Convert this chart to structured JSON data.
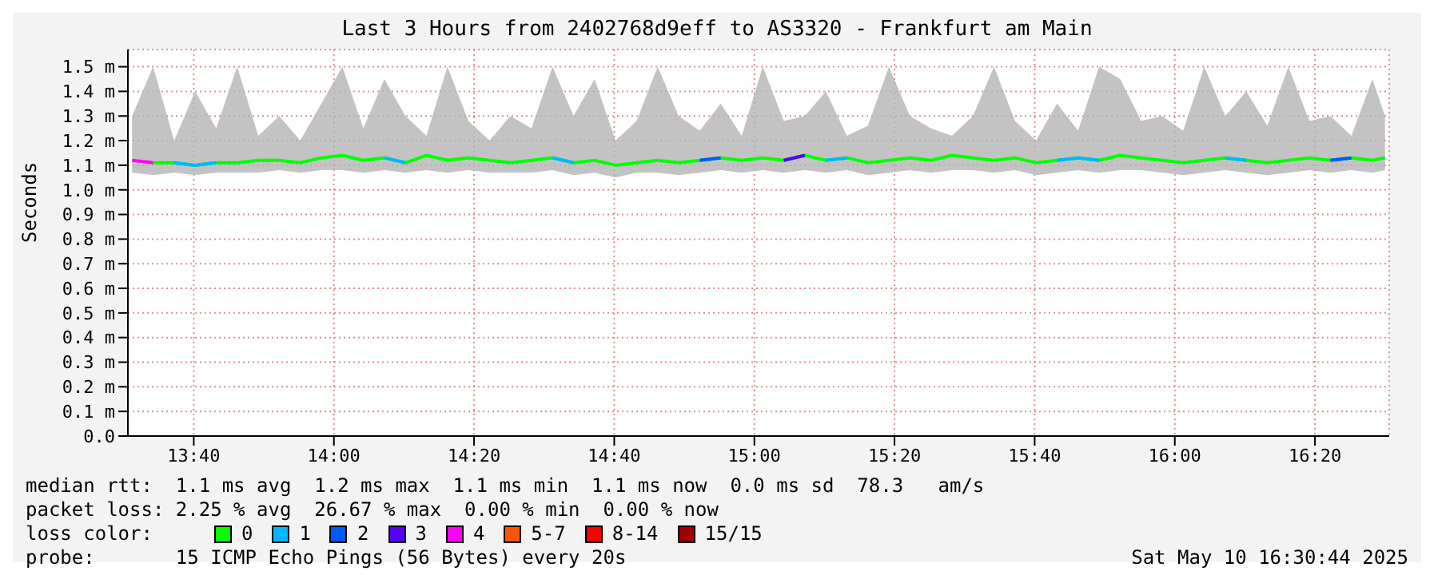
{
  "chart_data": {
    "type": "line",
    "title": "Last 3 Hours from 2402768d9eff to AS3320 - Frankfurt am Main",
    "ylabel": "Seconds",
    "x": [
      13.52,
      13.57,
      13.62,
      13.67,
      13.72,
      13.77,
      13.82,
      13.87,
      13.92,
      13.97,
      14.02,
      14.07,
      14.12,
      14.17,
      14.22,
      14.27,
      14.32,
      14.37,
      14.42,
      14.47,
      14.52,
      14.57,
      14.62,
      14.67,
      14.72,
      14.77,
      14.82,
      14.87,
      14.92,
      14.97,
      15.02,
      15.07,
      15.12,
      15.17,
      15.22,
      15.27,
      15.32,
      15.37,
      15.42,
      15.47,
      15.52,
      15.57,
      15.62,
      15.67,
      15.72,
      15.77,
      15.82,
      15.87,
      15.92,
      15.97,
      16.02,
      16.07,
      16.12,
      16.17,
      16.22,
      16.27,
      16.32,
      16.37,
      16.42,
      16.47,
      16.5
    ],
    "series": [
      {
        "name": "0",
        "color": "#00ff00",
        "values": [
          null,
          1.11,
          1.11,
          1.1,
          1.11,
          1.11,
          1.12,
          1.12,
          1.11,
          1.13,
          1.14,
          1.12,
          1.13,
          1.11,
          1.14,
          1.12,
          1.13,
          1.12,
          1.11,
          1.12,
          1.13,
          1.11,
          1.12,
          1.1,
          1.11,
          1.12,
          1.11,
          1.12,
          1.13,
          1.12,
          1.13,
          1.12,
          1.14,
          1.12,
          1.13,
          1.11,
          1.12,
          1.13,
          1.12,
          1.14,
          1.13,
          1.12,
          1.13,
          1.11,
          1.12,
          1.13,
          1.12,
          1.14,
          1.13,
          1.12,
          1.11,
          1.12,
          1.13,
          1.12,
          1.11,
          1.12,
          1.13,
          1.12,
          1.13,
          1.12,
          1.13
        ],
        "lower": [
          1.07,
          1.06,
          1.07,
          1.06,
          1.07,
          1.07,
          1.07,
          1.08,
          1.07,
          1.08,
          1.08,
          1.07,
          1.08,
          1.07,
          1.08,
          1.07,
          1.08,
          1.07,
          1.07,
          1.07,
          1.08,
          1.06,
          1.07,
          1.05,
          1.07,
          1.07,
          1.06,
          1.07,
          1.08,
          1.07,
          1.08,
          1.07,
          1.08,
          1.07,
          1.08,
          1.06,
          1.07,
          1.08,
          1.07,
          1.08,
          1.08,
          1.07,
          1.08,
          1.06,
          1.07,
          1.08,
          1.07,
          1.08,
          1.08,
          1.07,
          1.06,
          1.07,
          1.08,
          1.07,
          1.06,
          1.07,
          1.08,
          1.07,
          1.08,
          1.07,
          1.08
        ],
        "upper": [
          1.3,
          1.5,
          1.2,
          1.4,
          1.25,
          1.5,
          1.22,
          1.3,
          1.2,
          1.35,
          1.5,
          1.25,
          1.45,
          1.3,
          1.22,
          1.5,
          1.28,
          1.2,
          1.3,
          1.25,
          1.5,
          1.3,
          1.45,
          1.2,
          1.28,
          1.5,
          1.3,
          1.24,
          1.35,
          1.22,
          1.5,
          1.28,
          1.3,
          1.4,
          1.22,
          1.26,
          1.5,
          1.3,
          1.25,
          1.22,
          1.3,
          1.5,
          1.28,
          1.2,
          1.35,
          1.24,
          1.5,
          1.45,
          1.28,
          1.3,
          1.24,
          1.5,
          1.3,
          1.4,
          1.26,
          1.5,
          1.28,
          1.3,
          1.22,
          1.45,
          1.3
        ]
      },
      {
        "name": "1",
        "color": "#00b8ff",
        "values": [
          null,
          null,
          1.11,
          1.1,
          1.11,
          null,
          null,
          null,
          null,
          null,
          null,
          null,
          1.13,
          1.11,
          null,
          null,
          null,
          null,
          null,
          null,
          1.13,
          1.11,
          null,
          null,
          null,
          null,
          null,
          null,
          null,
          null,
          null,
          null,
          null,
          1.12,
          1.13,
          null,
          null,
          null,
          null,
          null,
          null,
          null,
          null,
          null,
          1.12,
          1.13,
          1.12,
          null,
          null,
          null,
          null,
          null,
          1.13,
          1.12,
          null,
          null,
          null,
          null,
          null,
          null,
          null
        ]
      },
      {
        "name": "2",
        "color": "#0059ff",
        "values": [
          null,
          null,
          null,
          null,
          null,
          null,
          null,
          null,
          null,
          null,
          null,
          null,
          null,
          null,
          null,
          null,
          null,
          null,
          null,
          null,
          null,
          null,
          null,
          null,
          null,
          null,
          null,
          1.12,
          1.13,
          null,
          null,
          null,
          null,
          null,
          null,
          null,
          null,
          null,
          null,
          null,
          null,
          null,
          null,
          null,
          null,
          null,
          null,
          null,
          null,
          null,
          null,
          null,
          null,
          null,
          null,
          null,
          null,
          1.12,
          1.13,
          null,
          null
        ]
      },
      {
        "name": "3",
        "color": "#5500ff",
        "values": [
          null,
          null,
          null,
          null,
          null,
          null,
          null,
          null,
          null,
          null,
          null,
          null,
          null,
          null,
          null,
          null,
          null,
          null,
          null,
          null,
          null,
          null,
          null,
          null,
          null,
          null,
          null,
          null,
          null,
          null,
          null,
          1.12,
          1.14,
          null,
          null,
          null,
          null,
          null,
          null,
          null,
          null,
          null,
          null,
          null,
          null,
          null,
          null,
          null,
          null,
          null,
          null,
          null,
          null,
          null,
          null,
          null,
          null,
          null,
          null,
          null,
          null
        ]
      },
      {
        "name": "4",
        "color": "#ff00ff",
        "values": [
          1.12,
          1.11,
          null,
          null,
          null,
          null,
          null,
          null,
          null,
          null,
          null,
          null,
          null,
          null,
          null,
          null,
          null,
          null,
          null,
          null,
          null,
          null,
          null,
          null,
          null,
          null,
          null,
          null,
          null,
          null,
          null,
          null,
          null,
          null,
          null,
          null,
          null,
          null,
          null,
          null,
          null,
          null,
          null,
          null,
          null,
          null,
          null,
          null,
          null,
          null,
          null,
          null,
          null,
          null,
          null,
          null,
          null,
          null,
          null,
          null,
          null
        ]
      },
      {
        "name": "5-7",
        "color": "#ff5500",
        "values": [
          null,
          null,
          null,
          null,
          null,
          null,
          null,
          null,
          null,
          null,
          null,
          null,
          null,
          null,
          null,
          null,
          null,
          null,
          null,
          null,
          null,
          null,
          null,
          null,
          null,
          null,
          null,
          null,
          null,
          null,
          null,
          null,
          null,
          null,
          null,
          null,
          null,
          null,
          null,
          null,
          null,
          null,
          null,
          null,
          null,
          null,
          null,
          null,
          null,
          null,
          null,
          null,
          null,
          null,
          null,
          null,
          null,
          null,
          null,
          null,
          null
        ]
      },
      {
        "name": "8-14",
        "color": "#ff0000",
        "values": [
          null,
          null,
          null,
          null,
          null,
          null,
          null,
          null,
          null,
          null,
          null,
          null,
          null,
          null,
          null,
          null,
          null,
          null,
          null,
          null,
          null,
          null,
          null,
          null,
          null,
          null,
          null,
          null,
          null,
          null,
          null,
          null,
          null,
          null,
          null,
          null,
          null,
          null,
          null,
          null,
          null,
          null,
          null,
          null,
          null,
          null,
          null,
          null,
          null,
          null,
          null,
          null,
          null,
          null,
          null,
          null,
          null,
          null,
          null,
          null,
          null
        ]
      },
      {
        "name": "15/15",
        "color": "#a10000",
        "values": [
          null,
          null,
          null,
          null,
          null,
          null,
          null,
          null,
          null,
          null,
          null,
          null,
          null,
          null,
          null,
          null,
          null,
          null,
          null,
          null,
          null,
          null,
          null,
          null,
          null,
          null,
          null,
          null,
          null,
          null,
          null,
          null,
          null,
          null,
          null,
          null,
          null,
          null,
          null,
          null,
          null,
          null,
          null,
          null,
          null,
          null,
          null,
          null,
          null,
          null,
          null,
          null,
          null,
          null,
          null,
          null,
          null,
          null,
          null,
          null,
          null
        ]
      }
    ],
    "xlim": [
      13.51,
      16.51
    ],
    "xticks": [
      {
        "value": 13.6667,
        "label": "13:40"
      },
      {
        "value": 14,
        "label": "14:00"
      },
      {
        "value": 14.3333,
        "label": "14:20"
      },
      {
        "value": 14.6667,
        "label": "14:40"
      },
      {
        "value": 15,
        "label": "15:00"
      },
      {
        "value": 15.3333,
        "label": "15:20"
      },
      {
        "value": 15.6667,
        "label": "15:40"
      },
      {
        "value": 16,
        "label": "16:00"
      },
      {
        "value": 16.3333,
        "label": "16:20"
      }
    ],
    "ylim": [
      0,
      1.57
    ],
    "yticks": [
      {
        "value": 0,
        "label": "0.0"
      },
      {
        "value": 0.1,
        "label": "0.1 m"
      },
      {
        "value": 0.2,
        "label": "0.2 m"
      },
      {
        "value": 0.3,
        "label": "0.3 m"
      },
      {
        "value": 0.4,
        "label": "0.4 m"
      },
      {
        "value": 0.5,
        "label": "0.5 m"
      },
      {
        "value": 0.6,
        "label": "0.6 m"
      },
      {
        "value": 0.7,
        "label": "0.7 m"
      },
      {
        "value": 0.8,
        "label": "0.8 m"
      },
      {
        "value": 0.9,
        "label": "0.9 m"
      },
      {
        "value": 1.0,
        "label": "1.0 m"
      },
      {
        "value": 1.1,
        "label": "1.1 m"
      },
      {
        "value": 1.2,
        "label": "1.2 m"
      },
      {
        "value": 1.3,
        "label": "1.3 m"
      },
      {
        "value": 1.4,
        "label": "1.4 m"
      },
      {
        "value": 1.5,
        "label": "1.5 m"
      }
    ],
    "grid": true,
    "legend": "bottom",
    "legend_title": "loss color:",
    "line_style": "solid",
    "marker": "none",
    "annotations": [
      "median rtt:  1.1 ms avg  1.2 ms max  1.1 ms min  1.1 ms now  0.0 ms sd  78.3   am/s",
      "packet loss: 2.25 % avg  26.67 % max  0.00 % min  0.00 % now",
      "probe:       15 ICMP Echo Pings (56 Bytes) every 20s",
      "Sat May 10 16:30:44 2025"
    ]
  }
}
